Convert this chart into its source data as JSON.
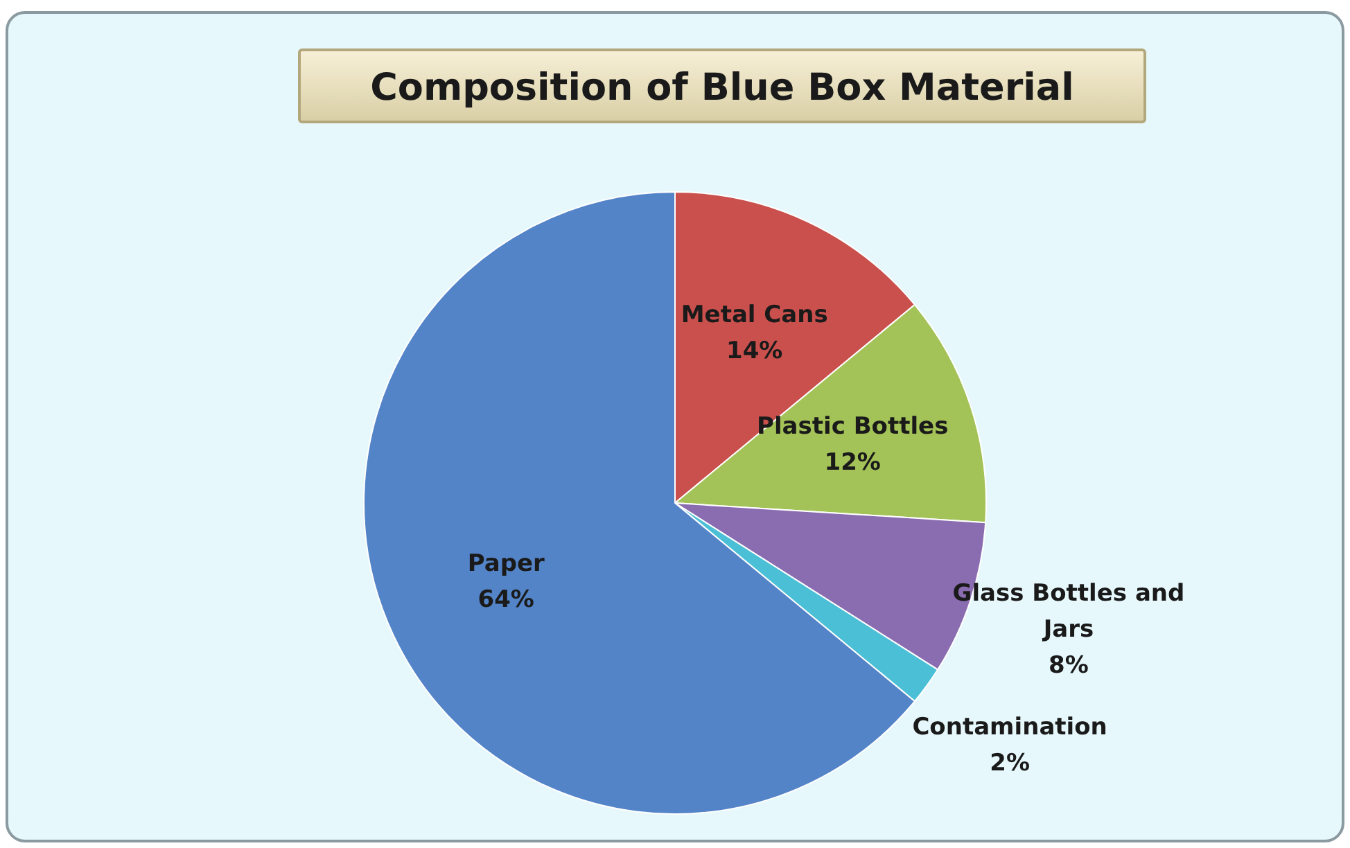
{
  "chart_data": {
    "type": "pie",
    "title": "Composition of Blue Box Material",
    "categories": [
      "Metal Cans",
      "Plastic Bottles",
      "Glass Bottles and Jars",
      "Contamination",
      "Paper"
    ],
    "values": [
      14,
      12,
      8,
      2,
      64
    ],
    "colors": [
      "#c9504c",
      "#a3c257",
      "#8a6db0",
      "#4bbfd6",
      "#5484c8"
    ],
    "value_labels": [
      "14%",
      "12%",
      "8%",
      "2%",
      "64%"
    ],
    "legend": false
  }
}
